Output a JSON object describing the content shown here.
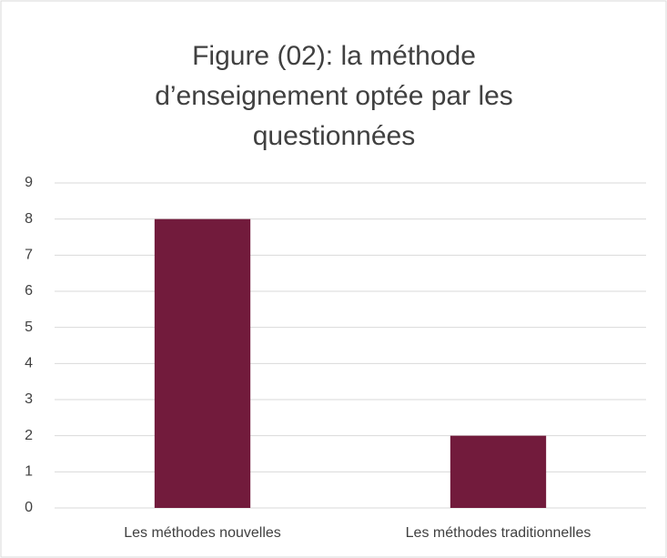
{
  "chart_data": {
    "type": "bar",
    "title": "Figure (02): la méthode d’enseignement optée par les questionnées",
    "categories": [
      "Les méthodes nouvelles",
      "Les méthodes traditionnelles"
    ],
    "values": [
      8,
      2
    ],
    "color": "#721b3c",
    "ylim": [
      0,
      9
    ],
    "yticks": [
      0,
      1,
      2,
      3,
      4,
      5,
      6,
      7,
      8,
      9
    ],
    "grid": true
  }
}
